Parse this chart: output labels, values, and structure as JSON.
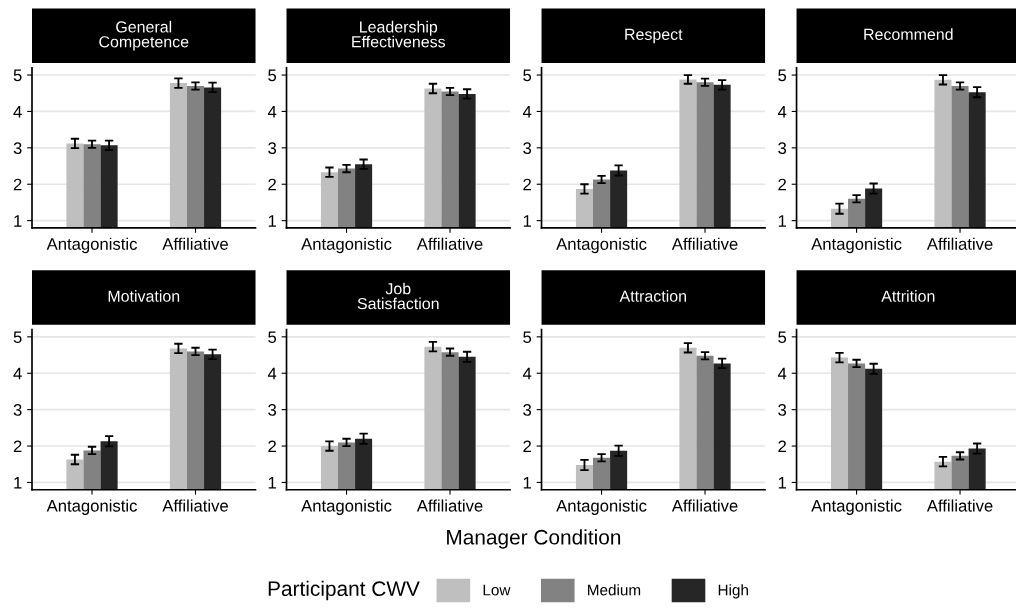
{
  "chart_data": [
    {
      "type": "bar",
      "title": "General\nCompetence",
      "categories": [
        "Antagonistic",
        "Affiliative"
      ],
      "ylim": [
        0.8,
        5.2
      ],
      "yticks": [
        1,
        2,
        3,
        4,
        5
      ],
      "grid": "y",
      "legend": "bottom",
      "legend_title": "Participant CWV",
      "series": [
        {
          "name": "Low",
          "color": "#bfbfbf",
          "values": [
            3.12,
            4.78
          ],
          "errors": [
            0.13,
            0.13
          ]
        },
        {
          "name": "Medium",
          "color": "#828282",
          "values": [
            3.1,
            4.7
          ],
          "errors": [
            0.1,
            0.1
          ]
        },
        {
          "name": "High",
          "color": "#262626",
          "values": [
            3.07,
            4.66
          ],
          "errors": [
            0.13,
            0.13
          ]
        }
      ]
    },
    {
      "type": "bar",
      "title": "Leadership\nEffectiveness",
      "categories": [
        "Antagonistic",
        "Affiliative"
      ],
      "ylim": [
        0.8,
        5.2
      ],
      "yticks": [
        1,
        2,
        3,
        4,
        5
      ],
      "grid": "y",
      "series": [
        {
          "color": "#bfbfbf",
          "values": [
            2.33,
            4.63
          ],
          "errors": [
            0.13,
            0.13
          ]
        },
        {
          "color": "#828282",
          "values": [
            2.43,
            4.55
          ],
          "errors": [
            0.1,
            0.1
          ]
        },
        {
          "color": "#262626",
          "values": [
            2.55,
            4.48
          ],
          "errors": [
            0.13,
            0.13
          ]
        }
      ]
    },
    {
      "type": "bar",
      "title": "Respect",
      "categories": [
        "Antagonistic",
        "Affiliative"
      ],
      "ylim": [
        0.8,
        5.2
      ],
      "yticks": [
        1,
        2,
        3,
        4,
        5
      ],
      "grid": "y",
      "series": [
        {
          "color": "#bfbfbf",
          "values": [
            1.87,
            4.88
          ],
          "errors": [
            0.13,
            0.12
          ]
        },
        {
          "color": "#828282",
          "values": [
            2.13,
            4.8
          ],
          "errors": [
            0.1,
            0.1
          ]
        },
        {
          "color": "#262626",
          "values": [
            2.38,
            4.73
          ],
          "errors": [
            0.14,
            0.13
          ]
        }
      ]
    },
    {
      "type": "bar",
      "title": "Recommend",
      "categories": [
        "Antagonistic",
        "Affiliative"
      ],
      "ylim": [
        0.8,
        5.2
      ],
      "yticks": [
        1,
        2,
        3,
        4,
        5
      ],
      "grid": "y",
      "series": [
        {
          "color": "#bfbfbf",
          "values": [
            1.33,
            4.87
          ],
          "errors": [
            0.14,
            0.13
          ]
        },
        {
          "color": "#828282",
          "values": [
            1.6,
            4.7
          ],
          "errors": [
            0.1,
            0.1
          ]
        },
        {
          "color": "#262626",
          "values": [
            1.88,
            4.53
          ],
          "errors": [
            0.14,
            0.14
          ]
        }
      ]
    },
    {
      "type": "bar",
      "title": "Motivation",
      "categories": [
        "Antagonistic",
        "Affiliative"
      ],
      "ylim": [
        0.8,
        5.2
      ],
      "yticks": [
        1,
        2,
        3,
        4,
        5
      ],
      "grid": "y",
      "series": [
        {
          "color": "#bfbfbf",
          "values": [
            1.63,
            4.68
          ],
          "errors": [
            0.13,
            0.13
          ]
        },
        {
          "color": "#828282",
          "values": [
            1.88,
            4.6
          ],
          "errors": [
            0.1,
            0.1
          ]
        },
        {
          "color": "#262626",
          "values": [
            2.13,
            4.52
          ],
          "errors": [
            0.14,
            0.13
          ]
        }
      ]
    },
    {
      "type": "bar",
      "title": "Job\nSatisfaction",
      "categories": [
        "Antagonistic",
        "Affiliative"
      ],
      "ylim": [
        0.8,
        5.2
      ],
      "yticks": [
        1,
        2,
        3,
        4,
        5
      ],
      "grid": "y",
      "series": [
        {
          "color": "#bfbfbf",
          "values": [
            2.0,
            4.73
          ],
          "errors": [
            0.13,
            0.13
          ]
        },
        {
          "color": "#828282",
          "values": [
            2.1,
            4.58
          ],
          "errors": [
            0.1,
            0.1
          ]
        },
        {
          "color": "#262626",
          "values": [
            2.2,
            4.45
          ],
          "errors": [
            0.14,
            0.14
          ]
        }
      ]
    },
    {
      "type": "bar",
      "title": "Attraction",
      "categories": [
        "Antagonistic",
        "Affiliative"
      ],
      "ylim": [
        0.8,
        5.2
      ],
      "yticks": [
        1,
        2,
        3,
        4,
        5
      ],
      "grid": "y",
      "xlabel": "Manager Condition",
      "series": [
        {
          "color": "#bfbfbf",
          "values": [
            1.48,
            4.7
          ],
          "errors": [
            0.14,
            0.13
          ]
        },
        {
          "color": "#828282",
          "values": [
            1.68,
            4.48
          ],
          "errors": [
            0.1,
            0.1
          ]
        },
        {
          "color": "#262626",
          "values": [
            1.87,
            4.27
          ],
          "errors": [
            0.14,
            0.13
          ]
        }
      ]
    },
    {
      "type": "bar",
      "title": "Attrition",
      "categories": [
        "Antagonistic",
        "Affiliative"
      ],
      "ylim": [
        0.8,
        5.2
      ],
      "yticks": [
        1,
        2,
        3,
        4,
        5
      ],
      "grid": "y",
      "series": [
        {
          "color": "#bfbfbf",
          "values": [
            4.43,
            1.57
          ],
          "errors": [
            0.13,
            0.13
          ]
        },
        {
          "color": "#828282",
          "values": [
            4.27,
            1.73
          ],
          "errors": [
            0.1,
            0.1
          ]
        },
        {
          "color": "#262626",
          "values": [
            4.12,
            1.93
          ],
          "errors": [
            0.14,
            0.14
          ]
        }
      ]
    }
  ]
}
